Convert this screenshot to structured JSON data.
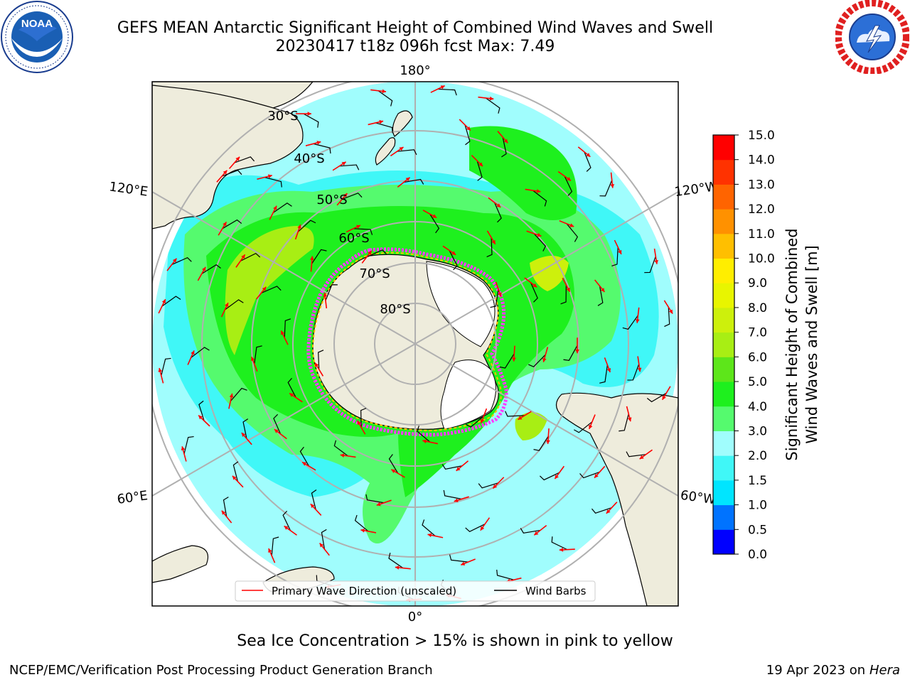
{
  "title": {
    "line1": "GEFS MEAN Antarctic Significant Height of Combined Wind Waves and Swell",
    "line2": "20230417 t18z 096h fcst   Max: 7.49"
  },
  "logos": {
    "left": {
      "name": "NOAA",
      "ring_text": "NATIONAL OCEANIC AND ATMOSPHERIC ADMINISTRATION · U.S. DEPARTMENT OF COMMERCE"
    },
    "right": {
      "name": "NATIONAL WEATHER SERVICE"
    }
  },
  "map": {
    "longitude_labels": [
      "180°",
      "120°E",
      "120°W",
      "60°E",
      "60°W",
      "0°"
    ],
    "latitude_labels": [
      "30°S",
      "40°S",
      "50°S",
      "60°S",
      "70°S",
      "80°S"
    ],
    "legend": {
      "wave": "Primary Wave Direction (unscaled)",
      "wind": "Wind Barbs",
      "wave_color": "#ff0000",
      "wind_color": "#000000"
    },
    "colors": {
      "land": "#eeecdc",
      "ice_shelf": "#ffffff",
      "sea_ice": "#ff3cff"
    }
  },
  "colorbar": {
    "title_line1": "Significant Height of Combined",
    "title_line2": "Wind Waves and Swell [m]",
    "levels": [
      "0.0",
      "0.5",
      "1.0",
      "1.5",
      "2.0",
      "3.0",
      "4.0",
      "5.0",
      "6.0",
      "7.0",
      "8.0",
      "9.0",
      "10.0",
      "11.0",
      "12.0",
      "13.0",
      "14.0",
      "15.0"
    ],
    "colors": [
      "#0000ff",
      "#0073ff",
      "#00e5ff",
      "#40f7f7",
      "#a0fdfd",
      "#55fa6e",
      "#1ef01e",
      "#5de61a",
      "#a8ee14",
      "#cdf00c",
      "#e8f500",
      "#ffee00",
      "#ffbf00",
      "#ff9100",
      "#ff6400",
      "#ff3200",
      "#ff0000"
    ]
  },
  "note": "Sea Ice Concentration > 15% is shown in pink to yellow",
  "footer": {
    "left": "NCEP/EMC/Verification Post Processing Product Generation Branch",
    "date": "19 Apr 2023 on ",
    "host": "Hera"
  }
}
